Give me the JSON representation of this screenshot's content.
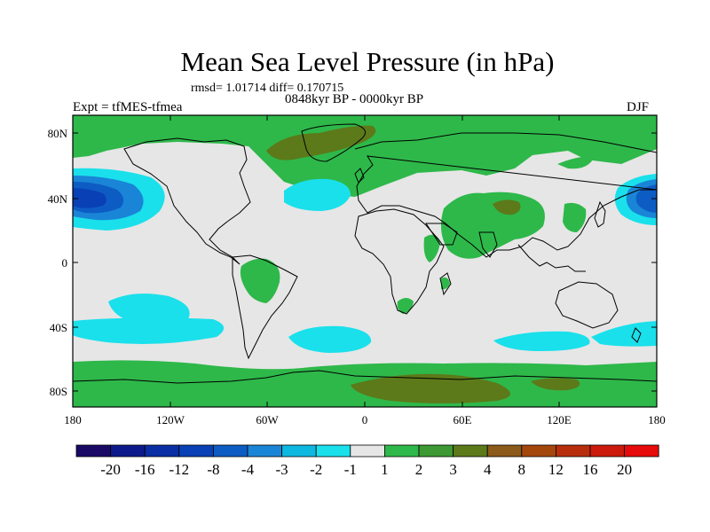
{
  "title": "Mean Sea Level Pressure (in hPa)",
  "stats_line": "rmsd= 1.01714 diff= 0.170715",
  "period_line": "0848kyr BP - 0000kyr BP",
  "experiment_label": "Expt = tfMES-tfmea",
  "season_label": "DJF",
  "lat_ticks": [
    "80N",
    "40N",
    "0",
    "40S",
    "80S"
  ],
  "lon_ticks": [
    "180",
    "120W",
    "60W",
    "0",
    "60E",
    "120E",
    "180"
  ],
  "colorbar": {
    "labels": [
      "-20",
      "-16",
      "-12",
      "-8",
      "-4",
      "-3",
      "-2",
      "-1",
      "1",
      "2",
      "3",
      "4",
      "8",
      "12",
      "16",
      "20"
    ],
    "colors": [
      "#1a0a66",
      "#0d1a8c",
      "#0a2ea3",
      "#0a40b5",
      "#0d5cc4",
      "#1a85d6",
      "#0db8e0",
      "#1ae0eb",
      "#e6e6e6",
      "#2eb84a",
      "#3d9933",
      "#5c7a1a",
      "#8c5a1a",
      "#a3470d",
      "#b82e0d",
      "#cc1a0d",
      "#e60a0a"
    ]
  },
  "palette": {
    "neutral": "#e6e6e6",
    "green": "#2eb84a",
    "olive": "#5c7a1a",
    "cyan": "#1ae0eb",
    "light_blue": "#1a85d6",
    "mid_blue": "#0d5cc4",
    "dark_blue": "#0a40b5",
    "coast": "#000000"
  }
}
